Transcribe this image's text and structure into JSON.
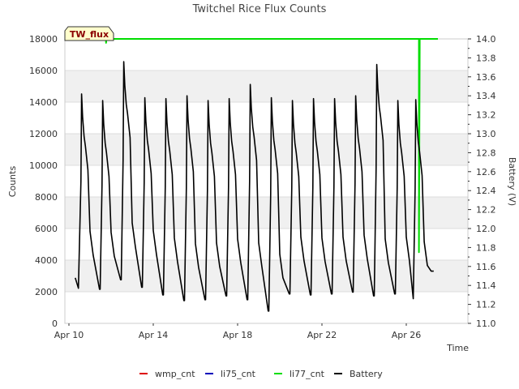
{
  "chart_data": {
    "type": "line",
    "title": "Twitchel Rice Flux Counts",
    "xlabel": "Time",
    "ylabel": "Counts",
    "y2label": "Battery (V)",
    "badge": "TW_flux",
    "x_range_days": [
      0,
      18
    ],
    "ylim": [
      0,
      18000
    ],
    "y2lim": [
      11.0,
      14.0
    ],
    "x_ticks": [
      {
        "day": 0,
        "label": "Apr 10"
      },
      {
        "day": 4,
        "label": "Apr 14"
      },
      {
        "day": 8,
        "label": "Apr 18"
      },
      {
        "day": 12,
        "label": "Apr 22"
      },
      {
        "day": 16,
        "label": "Apr 26"
      }
    ],
    "y_ticks": [
      0,
      2000,
      4000,
      6000,
      8000,
      10000,
      12000,
      14000,
      16000,
      18000
    ],
    "y2_ticks": [
      "11.0",
      "11.2",
      "11.4",
      "11.6",
      "11.8",
      "12.0",
      "12.2",
      "12.4",
      "12.6",
      "12.8",
      "13.0",
      "13.2",
      "13.4",
      "13.6",
      "13.8",
      "14.0"
    ],
    "legend": [
      {
        "name": "wmp_cnt",
        "color": "#dd0000"
      },
      {
        "name": "li75_cnt",
        "color": "#0000bb"
      },
      {
        "name": "li77_cnt",
        "color": "#00dd00"
      },
      {
        "name": "Battery",
        "color": "#000000"
      }
    ],
    "series": [
      {
        "name": "li77_cnt",
        "axis": "left",
        "color": "#00dd00",
        "points": [
          [
            0.0,
            18000
          ],
          [
            1.75,
            18000
          ],
          [
            1.76,
            17750
          ],
          [
            1.78,
            18000
          ],
          [
            16.6,
            18000
          ],
          [
            16.6,
            4500
          ],
          [
            16.64,
            18000
          ],
          [
            17.5,
            18000
          ]
        ]
      },
      {
        "name": "Battery",
        "axis": "right",
        "color": "#000000",
        "peak_day_offsets": [
          0.6,
          1.6,
          2.6,
          3.6,
          4.6,
          5.6,
          6.6,
          7.6,
          8.6,
          9.6,
          10.6,
          11.6,
          12.6,
          13.6,
          14.6,
          15.6,
          16.45
        ],
        "daily_max_v": [
          13.42,
          13.35,
          13.76,
          13.38,
          13.37,
          13.4,
          13.35,
          13.37,
          13.52,
          13.38,
          13.35,
          13.37,
          13.37,
          13.4,
          13.73,
          13.35,
          13.36
        ],
        "daily_min_v": [
          11.37,
          11.36,
          11.46,
          11.38,
          11.3,
          11.24,
          11.25,
          11.29,
          11.25,
          11.13,
          11.31,
          11.3,
          11.31,
          11.33,
          11.29,
          11.31,
          11.26,
          11.55
        ],
        "start_v": 11.48,
        "end_day": 17.3,
        "end_v": 11.55
      }
    ]
  }
}
